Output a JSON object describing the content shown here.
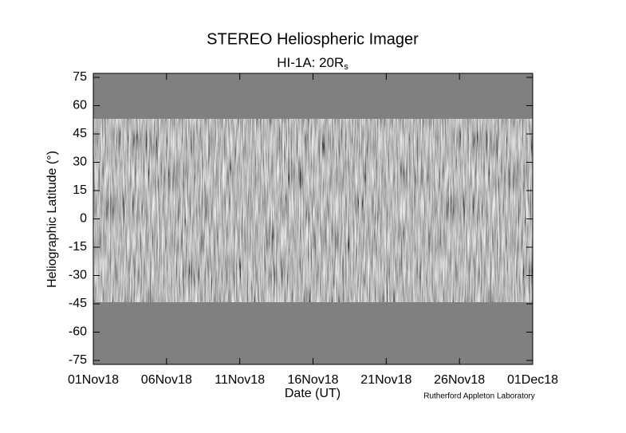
{
  "chart_data": {
    "type": "image",
    "title": "STEREO Heliospheric Imager",
    "subtitle": "HI-1A: 20R",
    "subtitle_subscript": "s",
    "xlabel": "Date (UT)",
    "ylabel": "Heliographic Latitude (°)",
    "credit": "Rutherford Appleton Laboratory",
    "xlim": [
      "2018-11-01",
      "2018-12-01"
    ],
    "xticks": [
      {
        "value": "2018-11-01",
        "label": "01Nov18"
      },
      {
        "value": "2018-11-06",
        "label": "06Nov18"
      },
      {
        "value": "2018-11-11",
        "label": "11Nov18"
      },
      {
        "value": "2018-11-16",
        "label": "16Nov18"
      },
      {
        "value": "2018-11-21",
        "label": "21Nov18"
      },
      {
        "value": "2018-11-26",
        "label": "26Nov18"
      },
      {
        "value": "2018-12-01",
        "label": "01Dec18"
      }
    ],
    "ylim": [
      -75,
      75
    ],
    "yticks": [
      -75,
      -60,
      -45,
      -30,
      -15,
      0,
      15,
      30,
      45,
      60,
      75
    ],
    "data_ylim": [
      -44,
      53
    ],
    "background_color": "#808080"
  }
}
